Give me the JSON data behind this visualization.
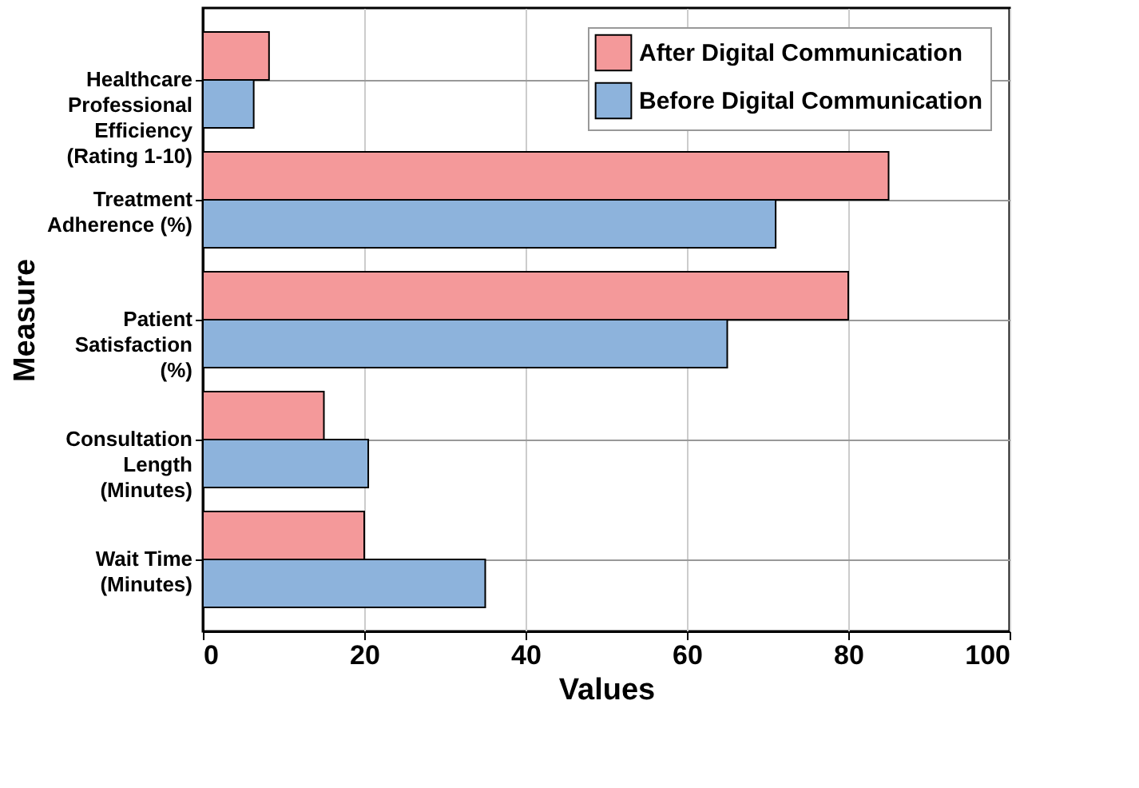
{
  "chart_data": {
    "type": "bar",
    "orientation": "horizontal",
    "xlabel": "Values",
    "ylabel": "Measure",
    "categories": [
      "Healthcare\nProfessional\nEfficiency\n(Rating 1-10)",
      "Treatment\nAdherence (%)",
      "Patient\nSatisfaction\n(%)",
      "Consultation\nLength\n(Minutes)",
      "Wait Time\n(Minutes)"
    ],
    "series": [
      {
        "name": "After Digital Communication",
        "color": "#f4999a",
        "values": [
          8.2,
          85,
          80,
          15,
          20
        ]
      },
      {
        "name": "Before Digital Communication",
        "color": "#8db3dc",
        "values": [
          6.3,
          71,
          65,
          20.5,
          35
        ]
      }
    ],
    "xlim": [
      0,
      100
    ],
    "xticks": [
      0,
      20,
      40,
      60,
      80,
      100
    ],
    "grid": true,
    "legend": "top right"
  }
}
